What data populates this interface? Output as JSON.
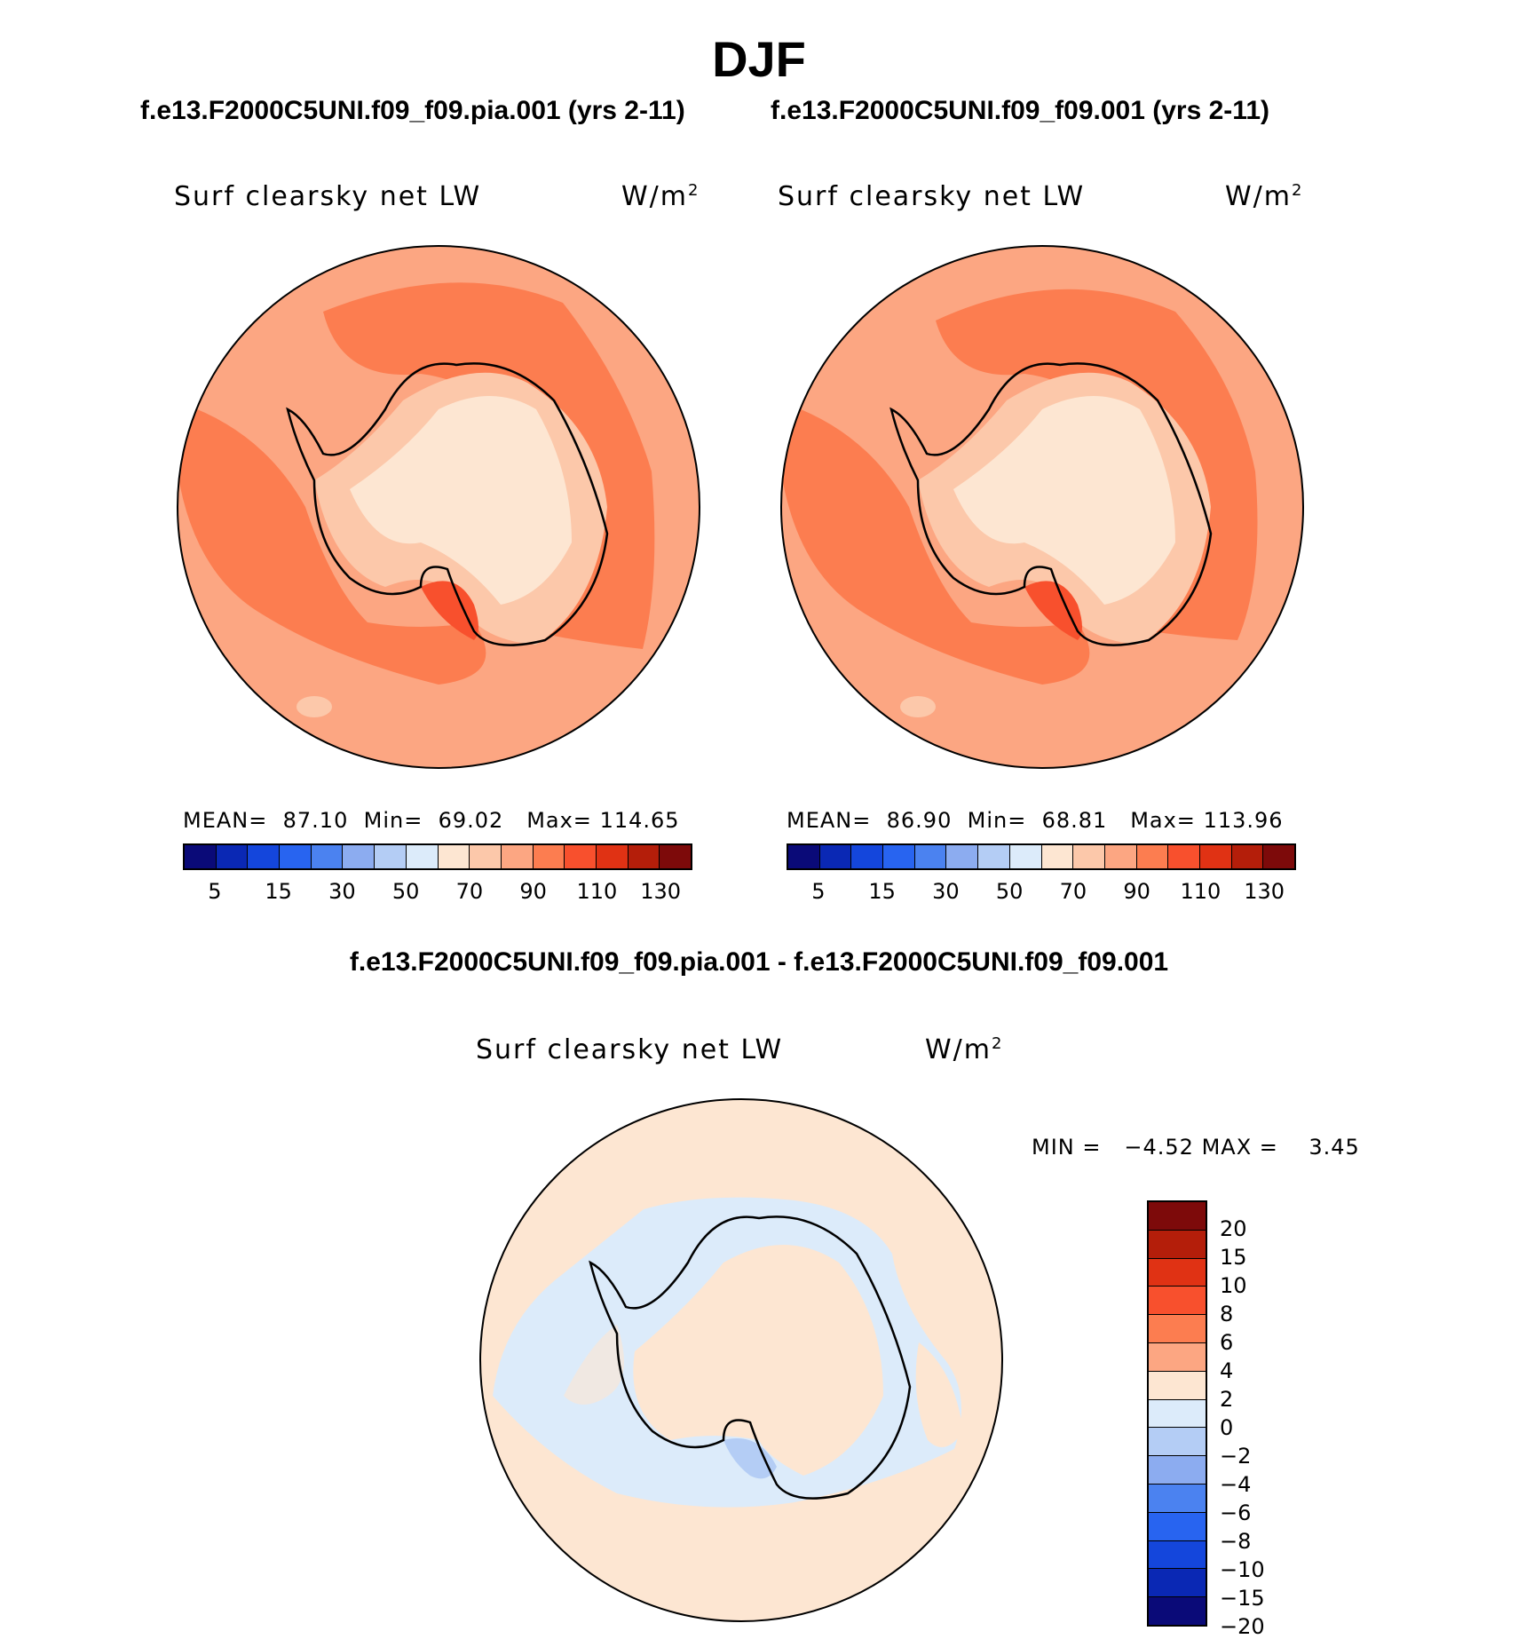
{
  "page_title": "DJF",
  "panels": [
    {
      "run": "f.e13.F2000C5UNI.f09_f09.pia.001 (yrs 2-11)",
      "variable": "Surf clearsky net LW",
      "units": "W/m",
      "units_sup": "2",
      "stats": {
        "mean_label": "MEAN=",
        "mean": "87.10",
        "min_label": "Min=",
        "min": "69.02",
        "max_label": "Max=",
        "max": "114.65"
      }
    },
    {
      "run": "f.e13.F2000C5UNI.f09_f09.001 (yrs 2-11)",
      "variable": "Surf clearsky net LW",
      "units": "W/m",
      "units_sup": "2",
      "stats": {
        "mean_label": "MEAN=",
        "mean": "86.90",
        "min_label": "Min=",
        "min": "68.81",
        "max_label": "Max=",
        "max": "113.96"
      }
    }
  ],
  "colorbar_top": {
    "colors": [
      "#0a0a78",
      "#0a28b4",
      "#1446dc",
      "#2864f0",
      "#4b82f0",
      "#8cacf0",
      "#b4cdf5",
      "#dcebfa",
      "#fde6d2",
      "#fcc8aa",
      "#fca682",
      "#fc7d50",
      "#f8502d",
      "#e03214",
      "#b41e0a",
      "#7d0a0a"
    ],
    "ticks": [
      "5",
      "15",
      "30",
      "50",
      "70",
      "90",
      "110",
      "130"
    ]
  },
  "difference": {
    "title": "f.e13.F2000C5UNI.f09_f09.pia.001 - f.e13.F2000C5UNI.f09_f09.001",
    "variable": "Surf clearsky net LW",
    "units": "W/m",
    "units_sup": "2",
    "min_label": "MIN =",
    "min": "−4.52",
    "max_label": "MAX =",
    "max": "3.45",
    "colorbar": {
      "colors": [
        "#7d0a0a",
        "#b41e0a",
        "#e03214",
        "#f8502d",
        "#fc7d50",
        "#fca682",
        "#fde6d2",
        "#dcebfa",
        "#b4cdf5",
        "#8cacf0",
        "#4b82f0",
        "#2864f0",
        "#1446dc",
        "#0a28b4",
        "#0a0a78"
      ],
      "ticks": [
        "20",
        "15",
        "10",
        "8",
        "6",
        "4",
        "2",
        "0",
        "−2",
        "−4",
        "−6",
        "−8",
        "−10",
        "−15",
        "−20"
      ]
    }
  }
}
